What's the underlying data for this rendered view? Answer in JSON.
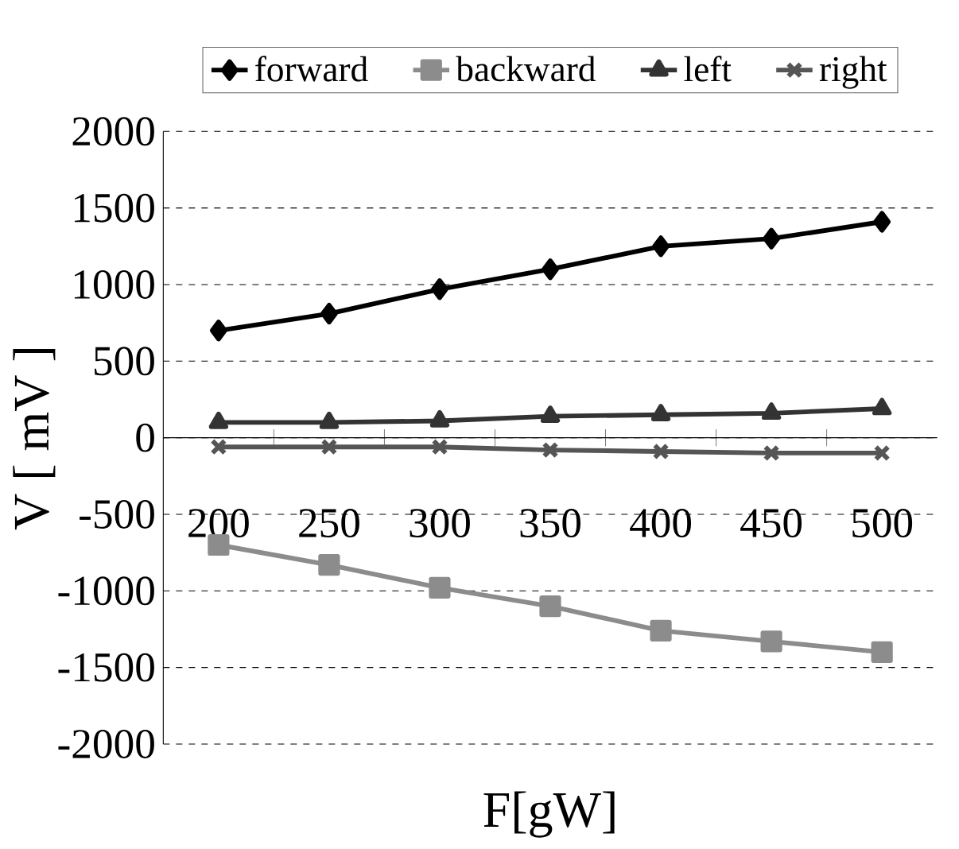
{
  "chart_data": {
    "type": "line",
    "xlabel": "F[gW]",
    "ylabel": "V [ mV ]",
    "categories": [
      "200",
      "250",
      "300",
      "350",
      "400",
      "450",
      "500"
    ],
    "series": [
      {
        "name": "forward",
        "color": "#000000",
        "marker": "diamond",
        "values": [
          700,
          810,
          970,
          1100,
          1250,
          1300,
          1410
        ]
      },
      {
        "name": "backward",
        "color": "#8c8c8c",
        "marker": "square",
        "values": [
          -700,
          -830,
          -980,
          -1100,
          -1260,
          -1330,
          -1400
        ]
      },
      {
        "name": "left",
        "color": "#333333",
        "marker": "triangle",
        "values": [
          100,
          100,
          110,
          140,
          150,
          160,
          190
        ]
      },
      {
        "name": "right",
        "color": "#555555",
        "marker": "cross",
        "values": [
          -60,
          -60,
          -60,
          -80,
          -90,
          -100,
          -100
        ]
      }
    ],
    "ylim": [
      -2000,
      2000
    ],
    "yticks": [
      -2000,
      -1500,
      -1000,
      -500,
      0,
      500,
      1000,
      1500,
      2000
    ],
    "grid": "y",
    "legend": "top",
    "line_style": "solid"
  }
}
